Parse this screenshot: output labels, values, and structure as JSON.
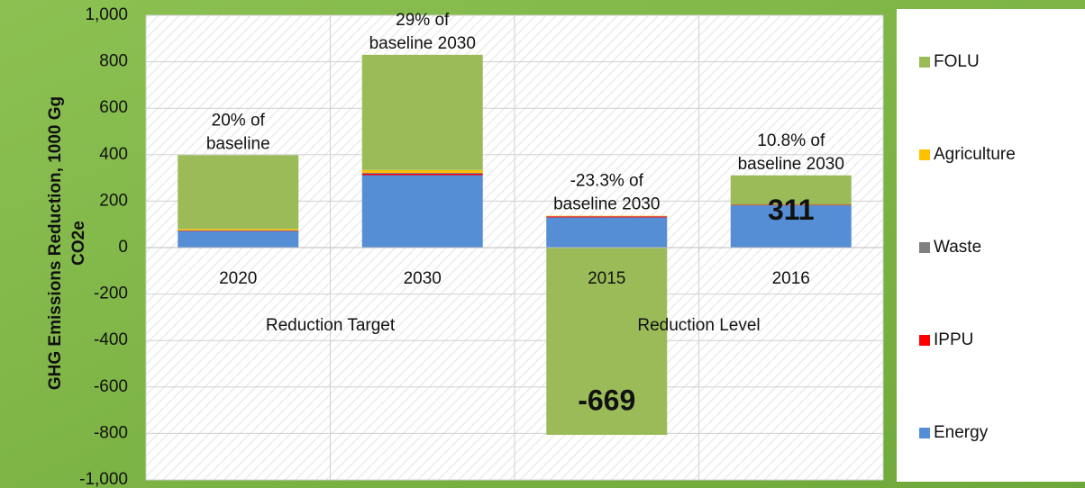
{
  "chart_data": {
    "type": "stacked_bar",
    "ylabel": [
      "GHG Emissions Reduction, 1000 Gg",
      "CO2e"
    ],
    "categories": [
      "2020",
      "2030",
      "2015",
      "2016"
    ],
    "groups": [
      {
        "name": "Reduction Target",
        "span": [
          0,
          1
        ]
      },
      {
        "name": "Reduction Level",
        "span": [
          2,
          3
        ]
      }
    ],
    "annotations": [
      [
        "20% of",
        "baseline"
      ],
      [
        "29% of",
        "baseline 2030"
      ],
      [
        "-23.3% of",
        "baseline 2030"
      ],
      [
        "10.8% of",
        "baseline 2030"
      ]
    ],
    "totals": [
      null,
      null,
      -669,
      311
    ],
    "series": [
      {
        "name": "Energy",
        "color": "#558ed5",
        "values": [
          72,
          312,
          130,
          182
        ]
      },
      {
        "name": "IPPU",
        "color": "#ff0000",
        "values": [
          2,
          6,
          4,
          2
        ]
      },
      {
        "name": "Waste",
        "color": "#7f7f7f",
        "values": [
          0,
          4,
          1,
          0
        ]
      },
      {
        "name": "Agriculture",
        "color": "#ffc000",
        "values": [
          6,
          12,
          2,
          0
        ]
      },
      {
        "name": "FOLU",
        "color": "#9bbb59",
        "values": [
          318,
          496,
          -806,
          127
        ]
      }
    ],
    "ylim": [
      -1000,
      1000
    ],
    "yticks": [
      {
        "value": -1000,
        "label": "-1,000"
      },
      -800,
      -600,
      -400,
      -200,
      0,
      200,
      400,
      600,
      800,
      {
        "value": 1000,
        "label": "1,000"
      }
    ],
    "grid": true
  }
}
